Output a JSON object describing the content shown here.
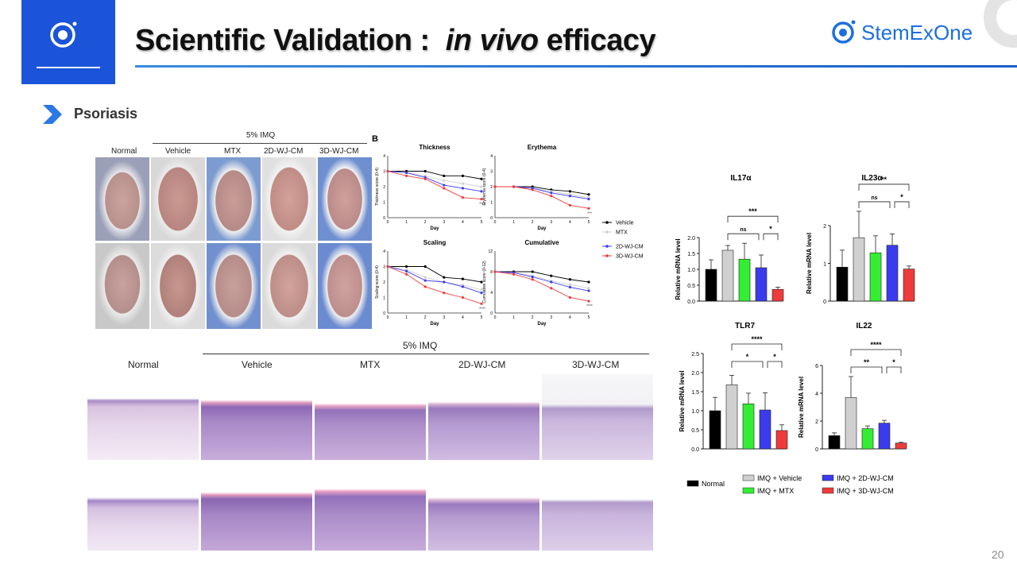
{
  "header": {
    "title_prefix": "Scientific Validation : ",
    "title_italic": "in vivo",
    "title_suffix": "efficacy",
    "brand": "StemExOne",
    "page_number": "20"
  },
  "section": {
    "label": "Psoriasis"
  },
  "colors": {
    "accent_blue": "#1b54d8",
    "brand_blue": "#1b6fe0",
    "vehicle": "#000000",
    "mtx": "#d0d0d0",
    "wj2d": "#33ee33",
    "wj2d_line": "#3b3bee",
    "wj3d": "#ee3b3b"
  },
  "photo_panel": {
    "group_label": "5% IMQ",
    "columns": [
      "Normal",
      "Vehicle",
      "MTX",
      "2D-WJ-CM",
      "3D-WJ-CM"
    ]
  },
  "histology_panel": {
    "group_label": "5% IMQ",
    "columns": [
      "Normal",
      "Vehicle",
      "MTX",
      "2D-WJ-CM",
      "3D-WJ-CM"
    ]
  },
  "chart_data": [
    {
      "type": "line",
      "panel_letter": "B",
      "title": "Thickness",
      "xlabel": "Day",
      "ylabel": "Thickness score (0-4)",
      "x": [
        0,
        1,
        2,
        3,
        4,
        5
      ],
      "ylim": [
        0,
        4
      ],
      "annotation": "****",
      "series": [
        {
          "name": "Vehicle",
          "values": [
            3,
            3,
            3,
            2.7,
            2.7,
            2.5
          ]
        },
        {
          "name": "MTX",
          "values": [
            3,
            2.9,
            2.7,
            2.4,
            2.2,
            2.0
          ]
        },
        {
          "name": "2D-WJ-CM",
          "values": [
            3,
            2.9,
            2.6,
            2.1,
            1.9,
            1.7
          ]
        },
        {
          "name": "3D-WJ-CM",
          "values": [
            3,
            2.7,
            2.5,
            1.9,
            1.3,
            1.2
          ]
        }
      ]
    },
    {
      "type": "line",
      "title": "Erythema",
      "xlabel": "Day",
      "ylabel": "Erythema score (0-4)",
      "x": [
        0,
        1,
        2,
        3,
        4,
        5
      ],
      "ylim": [
        0,
        4
      ],
      "annotation": "***",
      "series": [
        {
          "name": "Vehicle",
          "values": [
            2,
            2,
            2,
            1.8,
            1.7,
            1.5
          ]
        },
        {
          "name": "MTX",
          "values": [
            2,
            2,
            1.9,
            1.7,
            1.5,
            1.3
          ]
        },
        {
          "name": "2D-WJ-CM",
          "values": [
            2,
            2,
            1.9,
            1.6,
            1.4,
            1.2
          ]
        },
        {
          "name": "3D-WJ-CM",
          "values": [
            2,
            2,
            1.8,
            1.4,
            0.8,
            0.6
          ]
        }
      ]
    },
    {
      "type": "line",
      "title": "Scaling",
      "xlabel": "Day",
      "ylabel": "Scaling score (0-4)",
      "x": [
        0,
        1,
        2,
        3,
        4,
        5
      ],
      "ylim": [
        0,
        4
      ],
      "annotation": "****",
      "series": [
        {
          "name": "Vehicle",
          "values": [
            3,
            3,
            3,
            2.3,
            2.2,
            2.0
          ]
        },
        {
          "name": "MTX",
          "values": [
            3,
            2.8,
            2.3,
            2.0,
            1.8,
            1.5
          ]
        },
        {
          "name": "2D-WJ-CM",
          "values": [
            3,
            2.7,
            2.1,
            2.0,
            1.7,
            1.3
          ]
        },
        {
          "name": "3D-WJ-CM",
          "values": [
            3,
            2.5,
            1.7,
            1.3,
            1.0,
            0.6
          ]
        }
      ]
    },
    {
      "type": "line",
      "title": "Cumulative",
      "xlabel": "Day",
      "ylabel": "Cumulative score (0-12)",
      "x": [
        0,
        1,
        2,
        3,
        4,
        5
      ],
      "ylim": [
        0,
        12
      ],
      "annotation": "****",
      "series": [
        {
          "name": "Vehicle",
          "values": [
            8,
            8,
            8,
            7.2,
            6.5,
            6.0
          ]
        },
        {
          "name": "MTX",
          "values": [
            8,
            7.8,
            7.2,
            6.2,
            5.5,
            4.8
          ]
        },
        {
          "name": "2D-WJ-CM",
          "values": [
            8,
            7.8,
            7.0,
            6.0,
            5.0,
            4.3
          ]
        },
        {
          "name": "3D-WJ-CM",
          "values": [
            8,
            7.5,
            6.5,
            4.8,
            3.0,
            2.3
          ]
        }
      ]
    },
    {
      "type": "line-legend",
      "entries": [
        "Vehicle",
        "MTX",
        "2D-WJ-CM",
        "3D-WJ-CM"
      ]
    },
    {
      "type": "bar",
      "title": "IL17α",
      "ylabel": "Relative mRNA level",
      "ylim": [
        0,
        2.0
      ],
      "yticks": [
        "0.0",
        "0.5",
        "1.0",
        "1.5",
        "2.0"
      ],
      "categories": [
        "Normal",
        "IMQ + Vehicle",
        "IMQ + MTX",
        "IMQ + 2D-WJ-CM",
        "IMQ + 3D-WJ-CM"
      ],
      "values": [
        1.0,
        1.6,
        1.32,
        1.05,
        0.37
      ],
      "errors": [
        0.3,
        0.15,
        0.5,
        0.4,
        0.07
      ],
      "significance": [
        {
          "label": "***",
          "from": 1,
          "to": 4,
          "level": 2
        },
        {
          "label": "ns",
          "from": 1,
          "to": 3,
          "level": 1
        },
        {
          "label": "*",
          "from": 3,
          "to": 4,
          "level": 1
        }
      ]
    },
    {
      "type": "bar",
      "title": "IL23α",
      "ylabel": "Relative mRNA level",
      "ylim": [
        0,
        2.0
      ],
      "yticks": [
        "0",
        "1",
        "2"
      ],
      "categories": [
        "Normal",
        "IMQ + Vehicle",
        "IMQ + MTX",
        "IMQ + 2D-WJ-CM",
        "IMQ + 3D-WJ-CM"
      ],
      "values": [
        0.9,
        1.68,
        1.28,
        1.48,
        0.85
      ],
      "errors": [
        0.45,
        0.7,
        0.45,
        0.3,
        0.08
      ],
      "significance": [
        {
          "label": "**",
          "from": 1,
          "to": 4,
          "level": 2
        },
        {
          "label": "ns",
          "from": 1,
          "to": 3,
          "level": 1
        },
        {
          "label": "*",
          "from": 3,
          "to": 4,
          "level": 1
        }
      ]
    },
    {
      "type": "bar",
      "title": "TLR7",
      "ylabel": "Relative mRNA level",
      "ylim": [
        0,
        2.5
      ],
      "yticks": [
        "0.0",
        "0.5",
        "1.0",
        "1.5",
        "2.0",
        "2.5"
      ],
      "categories": [
        "Normal",
        "IMQ + Vehicle",
        "IMQ + MTX",
        "IMQ + 2D-WJ-CM",
        "IMQ + 3D-WJ-CM"
      ],
      "values": [
        1.0,
        1.68,
        1.18,
        1.02,
        0.48
      ],
      "errors": [
        0.35,
        0.25,
        0.28,
        0.45,
        0.15
      ],
      "significance": [
        {
          "label": "****",
          "from": 1,
          "to": 4,
          "level": 2
        },
        {
          "label": "*",
          "from": 1,
          "to": 3,
          "level": 1
        },
        {
          "label": "*",
          "from": 3,
          "to": 4,
          "level": 1
        }
      ]
    },
    {
      "type": "bar",
      "title": "IL22",
      "ylabel": "Relative mRNA level",
      "ylim": [
        0,
        6
      ],
      "yticks": [
        "0",
        "2",
        "4",
        "6"
      ],
      "categories": [
        "Normal",
        "IMQ + Vehicle",
        "IMQ + MTX",
        "IMQ + 2D-WJ-CM",
        "IMQ + 3D-WJ-CM"
      ],
      "values": [
        0.95,
        3.7,
        1.45,
        1.85,
        0.42
      ],
      "errors": [
        0.2,
        1.5,
        0.2,
        0.2,
        0.05
      ],
      "significance": [
        {
          "label": "****",
          "from": 1,
          "to": 4,
          "level": 2
        },
        {
          "label": "**",
          "from": 1,
          "to": 3,
          "level": 1
        },
        {
          "label": "*",
          "from": 3,
          "to": 4,
          "level": 1
        }
      ]
    },
    {
      "type": "bar-legend",
      "entries": [
        "Normal",
        "IMQ + Vehicle",
        "IMQ + MTX",
        "IMQ + 2D-WJ-CM",
        "IMQ + 3D-WJ-CM"
      ]
    }
  ]
}
